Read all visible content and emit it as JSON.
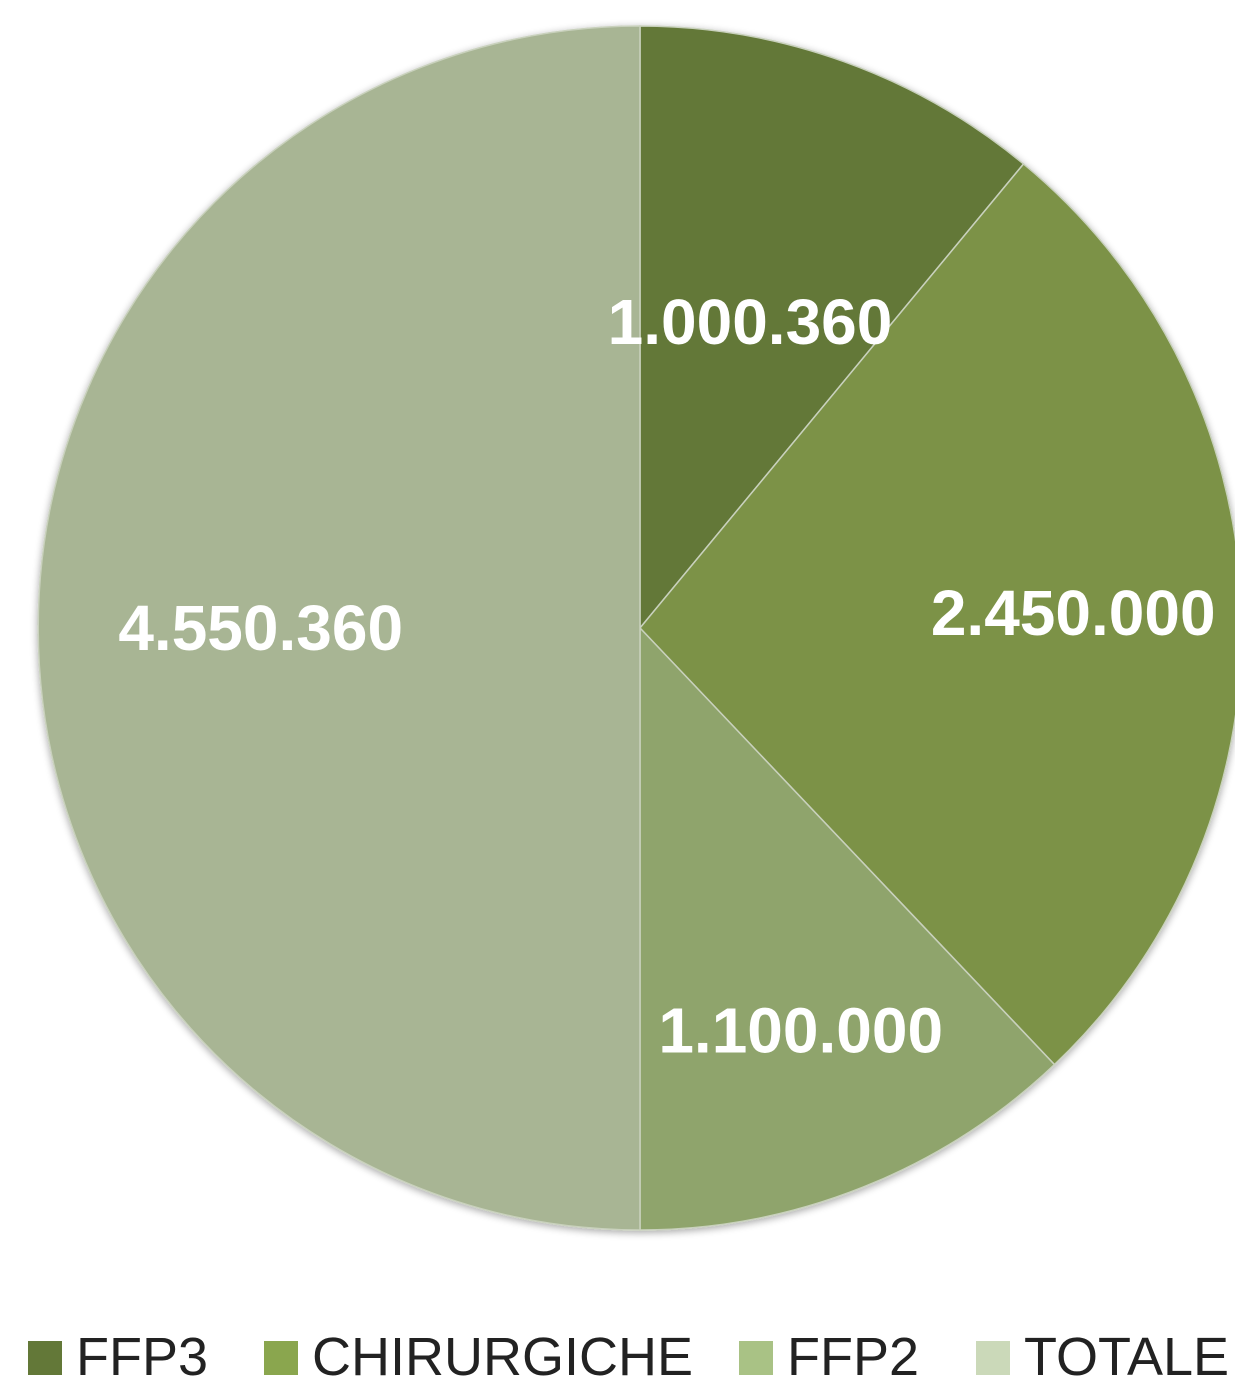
{
  "chart_data": {
    "type": "pie",
    "title": "",
    "categories": [
      "FFP3",
      "CHIRURGICHE",
      "FFP2",
      "TOTALE"
    ],
    "values": [
      1000360,
      2450000,
      1100000,
      4550360
    ],
    "value_labels": [
      "1.000.360",
      "2.450.000",
      "1.100.000",
      "4.550.360"
    ],
    "colors": [
      "#637838",
      "#7b9247",
      "#8fa46c",
      "#a8b594"
    ],
    "legend_colors": [
      "#637838",
      "#8aa64e",
      "#a9c285",
      "#cbd9b9"
    ],
    "legend_position": "bottom",
    "start_angle_deg": 0,
    "direction": "clockwise"
  }
}
